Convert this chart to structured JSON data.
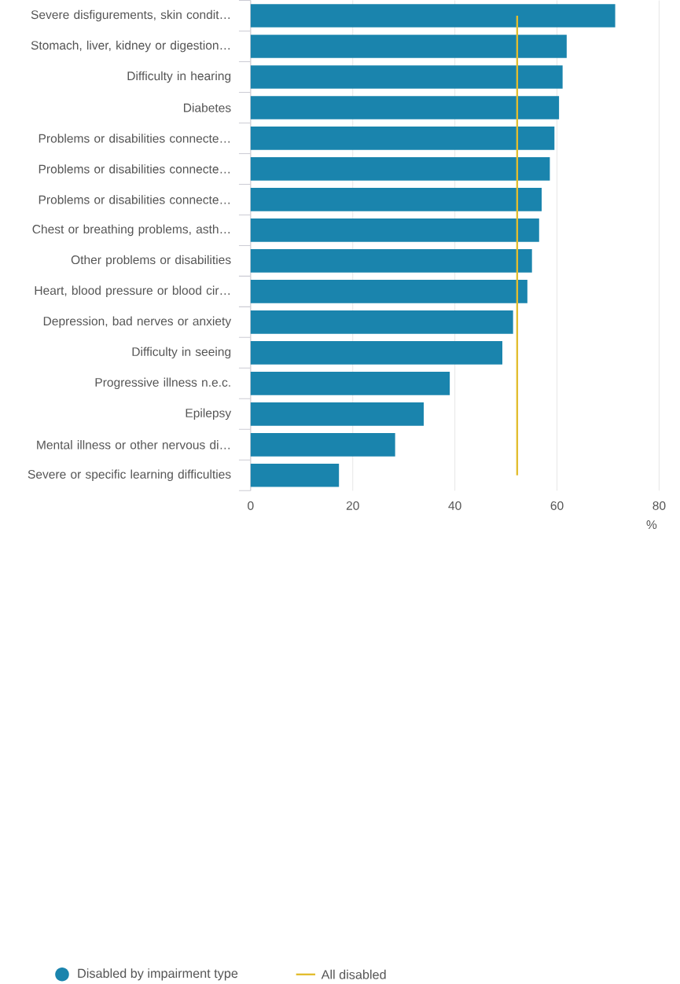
{
  "chart_data": {
    "type": "bar",
    "orientation": "horizontal",
    "categories": [
      "Severe disfigurements, skin condit…",
      "Stomach, liver, kidney or digestion…",
      "Difficulty in hearing",
      "Diabetes",
      "Problems or disabilities connecte…",
      "Problems or disabilities connecte…",
      "Problems or disabilities connecte…",
      "Chest or breathing problems, asth…",
      "Other problems or disabilities",
      "Heart, blood pressure or blood cir…",
      "Depression, bad nerves or anxiety",
      "Difficulty in seeing",
      "Progressive illness n.e.c.",
      "Epilepsy",
      "Mental illness or other nervous di…",
      "Severe or specific learning difficulties"
    ],
    "series": [
      {
        "name": "Disabled by impairment type",
        "color": "#1a84ad",
        "values": [
          71.4,
          61.9,
          61.1,
          60.4,
          59.5,
          58.6,
          57.0,
          56.5,
          55.1,
          54.2,
          51.4,
          49.3,
          39.0,
          33.9,
          28.3,
          17.3
        ]
      }
    ],
    "ref_lines": [
      {
        "axis": "x",
        "value": 52.2,
        "label": "All disabled",
        "color": "#e2bd2f"
      }
    ],
    "xlabel": "%",
    "xlim": [
      0,
      80
    ],
    "xticks": [
      0,
      20,
      40,
      60,
      80
    ],
    "grid": "x",
    "legend": "bottom"
  }
}
